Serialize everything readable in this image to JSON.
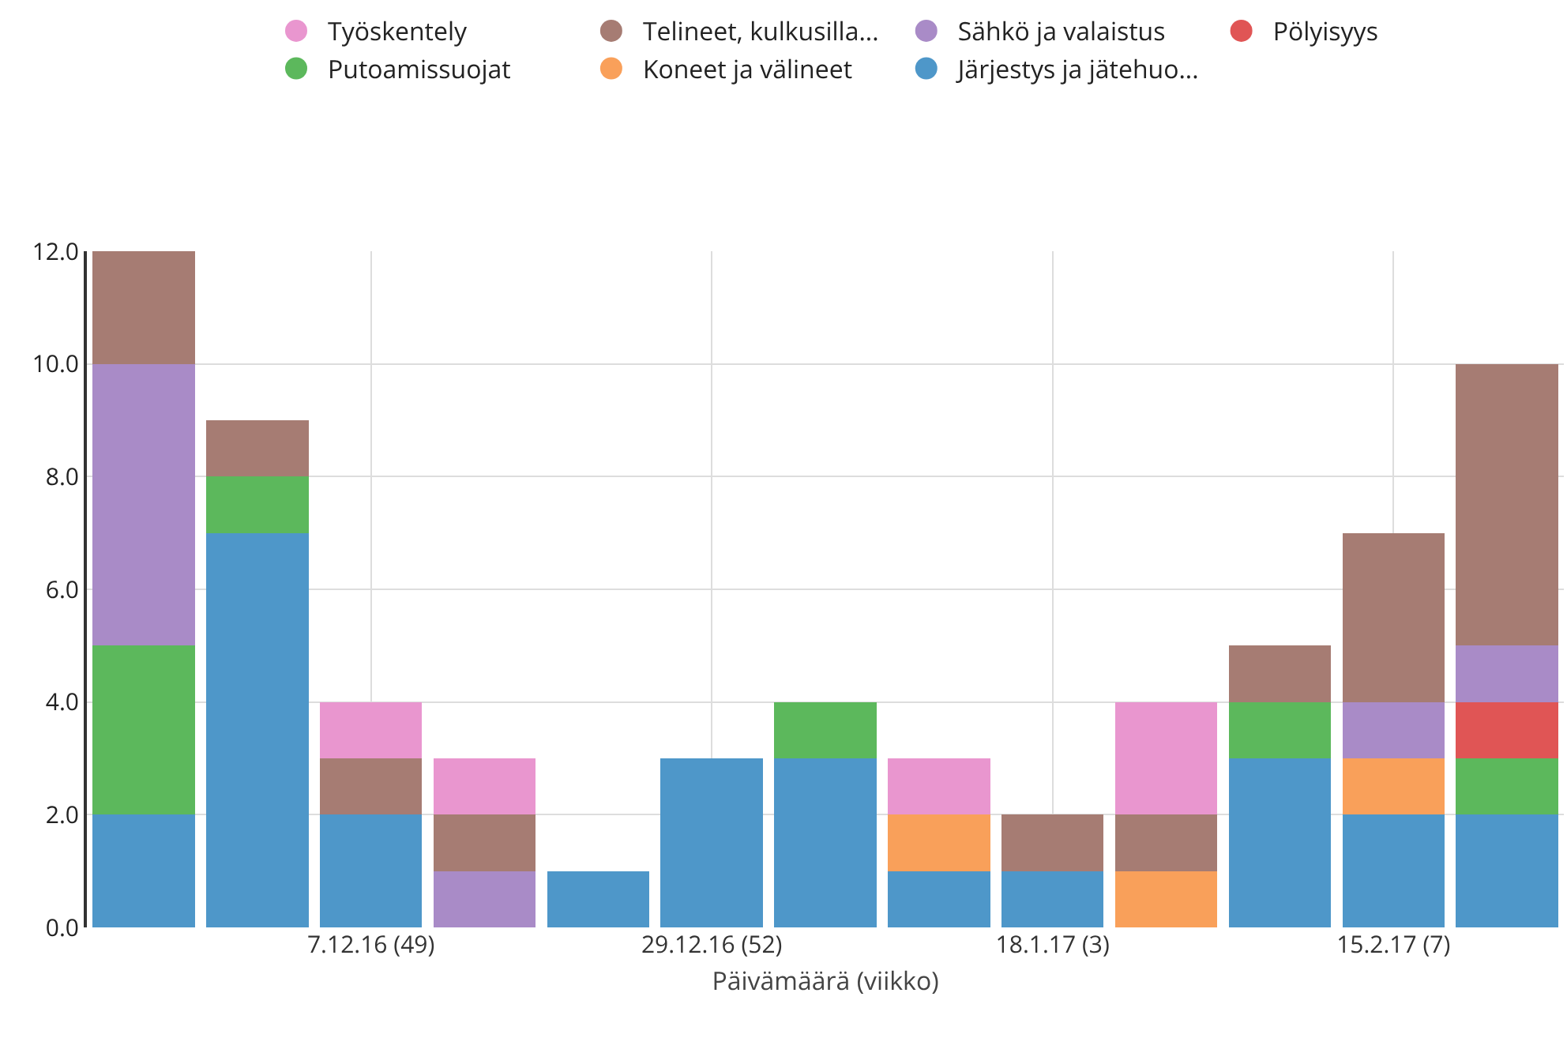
{
  "chart_data": {
    "type": "bar",
    "stacked": true,
    "xlabel": "Päivämäärä (viikko)",
    "categories": [
      null,
      null,
      "7.12.16 (49)",
      null,
      null,
      "29.12.16 (52)",
      null,
      null,
      "18.1.17 (3)",
      null,
      null,
      "15.2.17 (7)",
      null
    ],
    "ylim": [
      0,
      12
    ],
    "yticks": [
      {
        "value": 0,
        "label": "0.0"
      },
      {
        "value": 2,
        "label": "2.0"
      },
      {
        "value": 4,
        "label": "4.0"
      },
      {
        "value": 6,
        "label": "6.0"
      },
      {
        "value": 8,
        "label": "8.0"
      },
      {
        "value": 10,
        "label": "10.0"
      },
      {
        "value": 12,
        "label": "12.0"
      }
    ],
    "grid": true,
    "legend": "top",
    "marker": "circle",
    "series": [
      {
        "name": "Järjestys ja jätehuo...",
        "color": "#4e97c9",
        "values": [
          2,
          7,
          2,
          null,
          1,
          3,
          3,
          1,
          1,
          null,
          3,
          2,
          2
        ]
      },
      {
        "name": "Koneet ja välineet",
        "color": "#f9a05a",
        "values": [
          null,
          null,
          null,
          null,
          null,
          null,
          null,
          1,
          null,
          1,
          null,
          1,
          null
        ]
      },
      {
        "name": "Putoamissuojat",
        "color": "#5cb85c",
        "values": [
          3,
          1,
          null,
          null,
          null,
          null,
          1,
          null,
          null,
          null,
          1,
          null,
          1
        ]
      },
      {
        "name": "Pölyisyys",
        "color": "#e05555",
        "values": [
          null,
          null,
          null,
          null,
          null,
          null,
          null,
          null,
          null,
          null,
          null,
          null,
          1
        ]
      },
      {
        "name": "Sähkö ja valaistus",
        "color": "#a98bc7",
        "values": [
          5,
          null,
          null,
          1,
          null,
          null,
          null,
          null,
          null,
          null,
          null,
          1,
          1
        ]
      },
      {
        "name": "Telineet, kulkusilla...",
        "color": "#a67c73",
        "values": [
          2,
          1,
          1,
          1,
          null,
          null,
          null,
          null,
          1,
          1,
          1,
          3,
          5
        ]
      },
      {
        "name": "Työskentely",
        "color": "#e996cf",
        "values": [
          null,
          null,
          1,
          1,
          null,
          null,
          null,
          1,
          null,
          2,
          null,
          null,
          null
        ]
      }
    ]
  }
}
